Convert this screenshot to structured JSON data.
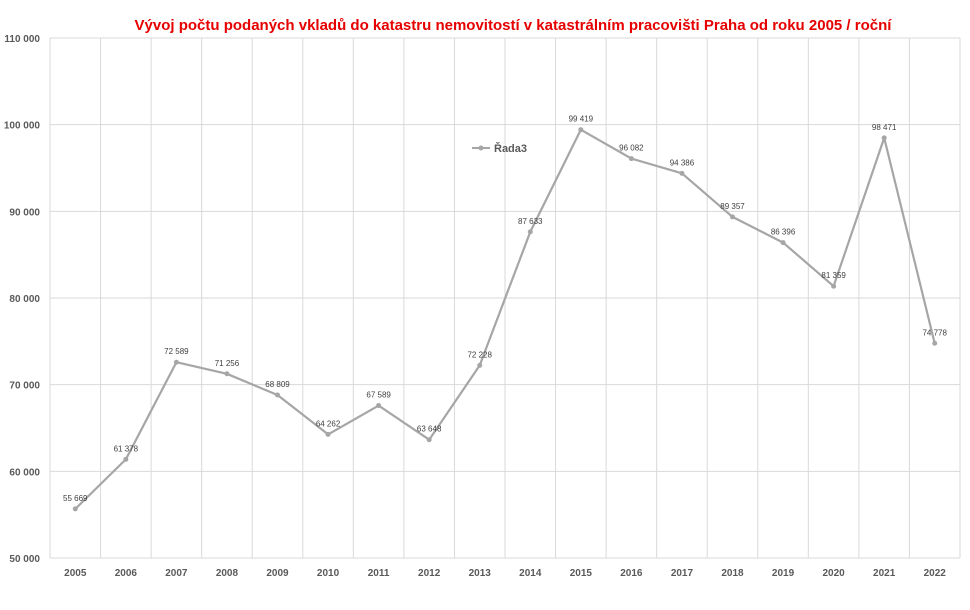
{
  "colors": {
    "title": "#e60000",
    "series": "#a6a6a6",
    "grid": "#d9d9d9",
    "text": "#595959"
  },
  "chart_data": {
    "type": "line",
    "title": "Vývoj počtu podaných vkladů do katastru nemovitostí v katastrálním pracovišti Praha od roku 2005 / roční",
    "xlabel": "",
    "ylabel": "",
    "ylim": [
      50000,
      110000
    ],
    "y_ticks": [
      50000,
      60000,
      70000,
      80000,
      90000,
      100000,
      110000
    ],
    "y_tick_labels": [
      "50 000",
      "60 000",
      "70 000",
      "80 000",
      "90 000",
      "100 000",
      "110 000"
    ],
    "categories": [
      "2005",
      "2006",
      "2007",
      "2008",
      "2009",
      "2010",
      "2011",
      "2012",
      "2013",
      "2014",
      "2015",
      "2016",
      "2017",
      "2018",
      "2019",
      "2020",
      "2021",
      "2022"
    ],
    "grid": true,
    "legend_position": "upper-center",
    "series": [
      {
        "name": "Řada3",
        "values": [
          55669,
          61378,
          72589,
          71256,
          68809,
          64262,
          67589,
          63648,
          72228,
          87633,
          99419,
          96082,
          94386,
          89357,
          86396,
          81359,
          98471,
          74778
        ],
        "labels": [
          "55 669",
          "61 378",
          "72 589",
          "71 256",
          "68 809",
          "64 262",
          "67 589",
          "63 648",
          "72 228",
          "87 633",
          "99 419",
          "96 082",
          "94 386",
          "89 357",
          "86 396",
          "81 359",
          "98 471",
          "74 778"
        ]
      }
    ]
  }
}
